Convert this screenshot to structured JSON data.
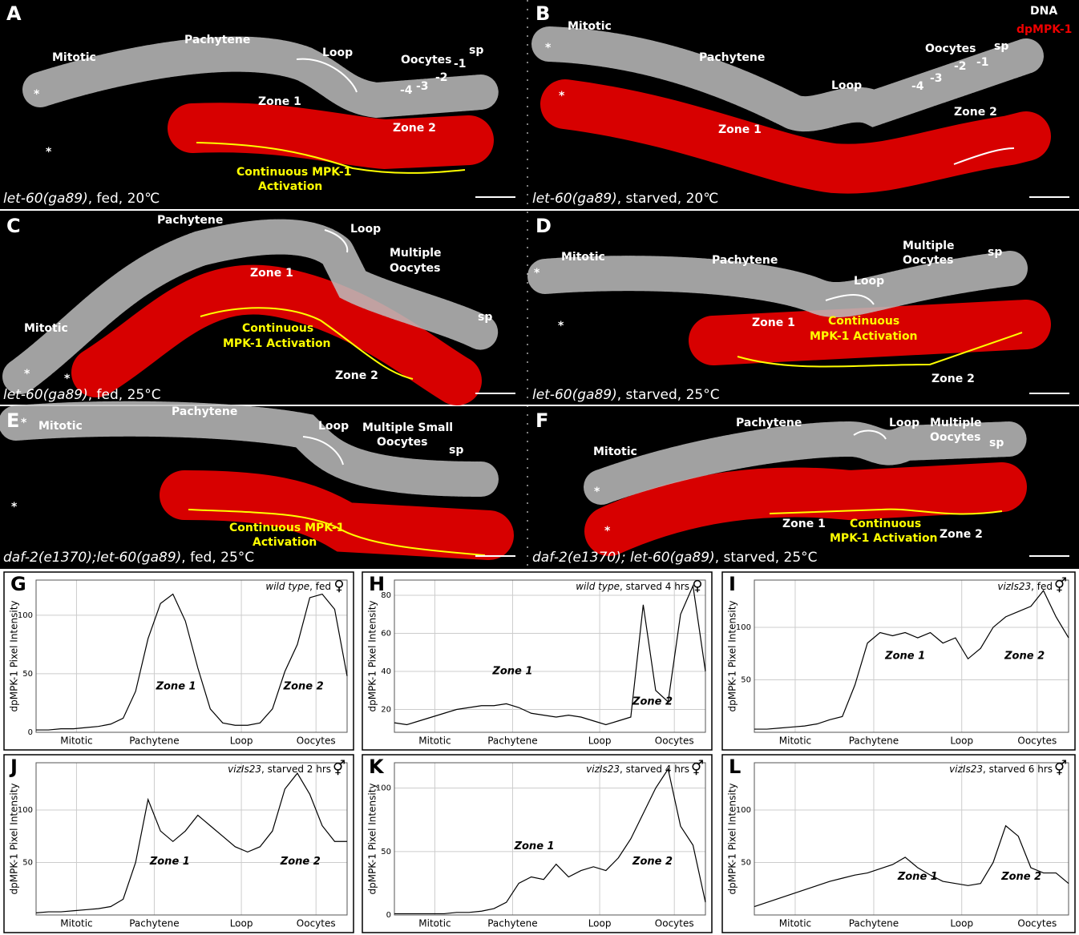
{
  "legend": [
    "DNA",
    "dpMPK-1"
  ],
  "panels": [
    {
      "letter": "A",
      "genotype": "let-60(ga89)",
      "condition": ", fed, 20℃",
      "labels": [
        "Mitotic",
        "Pachytene",
        "Loop",
        "Oocytes",
        "-1",
        "-2",
        "-3",
        "-4",
        "sp",
        "Zone 1",
        "Zone 2",
        "Continuous MPK-1",
        "Activation",
        "*",
        "*"
      ]
    },
    {
      "letter": "B",
      "genotype": "let-60(ga89)",
      "condition": ", starved, 20℃",
      "labels": [
        "Mitotic",
        "Pachytene",
        "Loop",
        "Oocytes",
        "-1",
        "-2",
        "-3",
        "-4",
        "sp",
        "Zone 1",
        "Zone 2",
        "*",
        "*"
      ]
    },
    {
      "letter": "C",
      "genotype": "let-60(ga89)",
      "condition": ", fed, 25°C",
      "labels": [
        "Pachytene",
        "Loop",
        "Multiple",
        "Oocytes",
        "Mitotic",
        "sp",
        "Zone 1",
        "Continuous",
        "MPK-1 Activation",
        "Zone 2",
        "*",
        "*"
      ]
    },
    {
      "letter": "D",
      "genotype": "let-60(ga89)",
      "condition": ", starved, 25°C",
      "labels": [
        "Mitotic",
        "Pachytene",
        "Loop",
        "Multiple",
        "Oocytes",
        "sp",
        "Zone 1",
        "Continuous",
        "MPK-1 Activation",
        "Zone 2",
        "*",
        "*"
      ]
    },
    {
      "letter": "E",
      "genotype": "daf-2(e1370);let-60(ga89)",
      "condition": ", fed, 25°C",
      "labels": [
        "Mitotic",
        "Pachytene",
        "Loop",
        "Multiple Small",
        "Oocytes",
        "sp",
        "Continuous MPK-1",
        "Activation",
        "*",
        "*"
      ]
    },
    {
      "letter": "F",
      "genotype": "daf-2(e1370); let-60(ga89)",
      "condition": ", starved, 25°C",
      "labels": [
        "Mitotic",
        "Pachytene",
        "Loop",
        "Multiple",
        "Oocytes",
        "sp",
        "Zone 1",
        "Continuous",
        "MPK-1 Activation",
        "Zone 2",
        "*",
        "*"
      ]
    }
  ],
  "chart_data": [
    {
      "type": "line",
      "letter": "G",
      "title_italic": "wild type",
      "title_rest": ", fed",
      "symbol": "♀",
      "ylabel": "dpMPK-1 Pixel Intensity",
      "annotations": [
        "Zone 1",
        "Zone 2"
      ],
      "x": [
        0,
        4,
        8,
        12,
        16,
        20,
        24,
        28,
        32,
        36,
        40,
        44,
        48,
        52,
        56,
        60,
        64,
        68,
        72,
        76,
        80,
        84,
        88,
        92,
        96,
        100
      ],
      "xlim": [
        0,
        100
      ],
      "xticks": [
        {
          "value": 13,
          "label": "Mitotic"
        },
        {
          "value": 38,
          "label": "Pachytene"
        },
        {
          "value": 66,
          "label": "Loop"
        },
        {
          "value": 90,
          "label": "Oocytes"
        }
      ],
      "ylim": [
        0,
        130
      ],
      "yticks": [
        0,
        50,
        100
      ],
      "grid": true,
      "series": [
        {
          "color": "#000000",
          "values": [
            2,
            2,
            3,
            3,
            4,
            5,
            7,
            12,
            35,
            80,
            110,
            118,
            95,
            55,
            20,
            8,
            6,
            6,
            8,
            20,
            52,
            75,
            115,
            118,
            105,
            48
          ]
        }
      ]
    },
    {
      "type": "line",
      "letter": "H",
      "title_italic": "wild type",
      "title_rest": ", starved 4 hrs",
      "symbol": "♀",
      "ylabel": "dpMPK-1 Pixel Intensity",
      "annotations": [
        "Zone 1",
        "Zone 2"
      ],
      "x": [
        0,
        4,
        8,
        12,
        16,
        20,
        24,
        28,
        32,
        36,
        40,
        44,
        48,
        52,
        56,
        60,
        64,
        68,
        72,
        76,
        80,
        84,
        88,
        92,
        96,
        100
      ],
      "xlim": [
        0,
        100
      ],
      "xticks": [
        {
          "value": 13,
          "label": "Mitotic"
        },
        {
          "value": 38,
          "label": "Pachytene"
        },
        {
          "value": 66,
          "label": "Loop"
        },
        {
          "value": 90,
          "label": "Oocytes"
        }
      ],
      "ylim": [
        8,
        88
      ],
      "yticks": [
        20,
        40,
        60,
        80
      ],
      "grid": true,
      "series": [
        {
          "color": "#000000",
          "values": [
            13,
            12,
            14,
            16,
            18,
            20,
            21,
            22,
            22,
            23,
            21,
            18,
            17,
            16,
            17,
            16,
            14,
            12,
            14,
            16,
            75,
            30,
            24,
            70,
            85,
            40
          ]
        }
      ]
    },
    {
      "type": "line",
      "letter": "I",
      "title_italic": "vizIs23",
      "title_rest": ", fed",
      "symbol": "⚥",
      "ylabel": "dpMPK-1 Pixel Intensity",
      "annotations": [
        "Zone 1",
        "Zone 2"
      ],
      "x": [
        0,
        4,
        8,
        12,
        16,
        20,
        24,
        28,
        32,
        36,
        40,
        44,
        48,
        52,
        56,
        60,
        64,
        68,
        72,
        76,
        80,
        84,
        88,
        92,
        96,
        100
      ],
      "xlim": [
        0,
        100
      ],
      "xticks": [
        {
          "value": 13,
          "label": "Mitotic"
        },
        {
          "value": 38,
          "label": "Pachytene"
        },
        {
          "value": 66,
          "label": "Loop"
        },
        {
          "value": 90,
          "label": "Oocytes"
        }
      ],
      "ylim": [
        0,
        145
      ],
      "yticks": [
        50,
        100
      ],
      "grid": true,
      "series": [
        {
          "color": "#000000",
          "values": [
            3,
            3,
            4,
            5,
            6,
            8,
            12,
            15,
            45,
            85,
            95,
            92,
            95,
            90,
            95,
            85,
            90,
            70,
            80,
            100,
            110,
            115,
            120,
            135,
            110,
            90
          ]
        }
      ]
    },
    {
      "type": "line",
      "letter": "J",
      "title_italic": "vizIs23",
      "title_rest": ", starved 2 hrs",
      "symbol": "⚥",
      "ylabel": "dpMPK-1 Pixel Intensity",
      "annotations": [
        "Zone 1",
        "Zone 2"
      ],
      "x": [
        0,
        4,
        8,
        12,
        16,
        20,
        24,
        28,
        32,
        36,
        40,
        44,
        48,
        52,
        56,
        60,
        64,
        68,
        72,
        76,
        80,
        84,
        88,
        92,
        96,
        100
      ],
      "xlim": [
        0,
        100
      ],
      "xticks": [
        {
          "value": 13,
          "label": "Mitotic"
        },
        {
          "value": 38,
          "label": "Pachytene"
        },
        {
          "value": 66,
          "label": "Loop"
        },
        {
          "value": 90,
          "label": "Oocytes"
        }
      ],
      "ylim": [
        0,
        145
      ],
      "yticks": [
        50,
        100
      ],
      "grid": true,
      "series": [
        {
          "color": "#000000",
          "values": [
            2,
            3,
            3,
            4,
            5,
            6,
            8,
            15,
            50,
            110,
            80,
            70,
            80,
            95,
            85,
            75,
            65,
            60,
            65,
            80,
            120,
            135,
            115,
            85,
            70,
            70
          ]
        }
      ]
    },
    {
      "type": "line",
      "letter": "K",
      "title_italic": "vizIs23",
      "title_rest": ", starved 4 hrs",
      "symbol": "⚥",
      "ylabel": "dpMPK-1 Pixel Intensity",
      "annotations": [
        "Zone 1",
        "Zone 2"
      ],
      "x": [
        0,
        4,
        8,
        12,
        16,
        20,
        24,
        28,
        32,
        36,
        40,
        44,
        48,
        52,
        56,
        60,
        64,
        68,
        72,
        76,
        80,
        84,
        88,
        92,
        96,
        100
      ],
      "xlim": [
        0,
        100
      ],
      "xticks": [
        {
          "value": 13,
          "label": "Mitotic"
        },
        {
          "value": 38,
          "label": "Pachytene"
        },
        {
          "value": 66,
          "label": "Loop"
        },
        {
          "value": 90,
          "label": "Oocytes"
        }
      ],
      "ylim": [
        0,
        120
      ],
      "yticks": [
        0,
        50,
        100
      ],
      "grid": true,
      "series": [
        {
          "color": "#000000",
          "values": [
            1,
            1,
            1,
            1,
            1,
            2,
            2,
            3,
            5,
            10,
            25,
            30,
            28,
            40,
            30,
            35,
            38,
            35,
            45,
            60,
            80,
            100,
            115,
            70,
            55,
            10
          ]
        }
      ]
    },
    {
      "type": "line",
      "letter": "L",
      "title_italic": "vizIs23",
      "title_rest": ", starved 6 hrs",
      "symbol": "⚥",
      "ylabel": "dpMPK-1 Pixel Intensity",
      "annotations": [
        "Zone 1",
        "Zone 2"
      ],
      "x": [
        0,
        4,
        8,
        12,
        16,
        20,
        24,
        28,
        32,
        36,
        40,
        44,
        48,
        52,
        56,
        60,
        64,
        68,
        72,
        76,
        80,
        84,
        88,
        92,
        96,
        100
      ],
      "xlim": [
        0,
        100
      ],
      "xticks": [
        {
          "value": 13,
          "label": "Mitotic"
        },
        {
          "value": 38,
          "label": "Pachytene"
        },
        {
          "value": 66,
          "label": "Loop"
        },
        {
          "value": 90,
          "label": "Oocytes"
        }
      ],
      "ylim": [
        0,
        145
      ],
      "yticks": [
        50,
        100
      ],
      "grid": true,
      "series": [
        {
          "color": "#000000",
          "values": [
            8,
            12,
            16,
            20,
            24,
            28,
            32,
            35,
            38,
            40,
            44,
            48,
            55,
            45,
            38,
            32,
            30,
            28,
            30,
            50,
            85,
            75,
            45,
            40,
            40,
            30
          ]
        }
      ]
    }
  ]
}
